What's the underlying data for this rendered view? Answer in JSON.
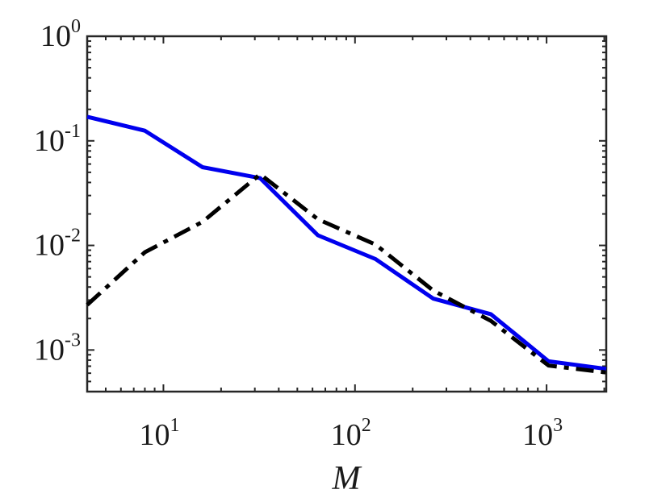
{
  "chart_data": {
    "type": "line",
    "title": "",
    "xlabel": "M",
    "ylabel": "",
    "xscale": "log",
    "yscale": "log",
    "xlim": [
      4,
      2048
    ],
    "ylim": [
      0.0004,
      1
    ],
    "grid": false,
    "legend": "none",
    "x_ticks": [
      {
        "value": 10,
        "base": "10",
        "exp": "1"
      },
      {
        "value": 100,
        "base": "10",
        "exp": "2"
      },
      {
        "value": 1000,
        "base": "10",
        "exp": "3"
      }
    ],
    "y_ticks": [
      {
        "value": 1,
        "base": "10",
        "exp": "0"
      },
      {
        "value": 0.1,
        "base": "10",
        "exp": "-1"
      },
      {
        "value": 0.01,
        "base": "10",
        "exp": "-2"
      },
      {
        "value": 0.001,
        "base": "10",
        "exp": "-3"
      }
    ],
    "series": [
      {
        "color": "#0000ee",
        "style": "solid",
        "x": [
          4,
          8,
          16,
          32,
          64,
          128,
          256,
          512,
          1024,
          2048
        ],
        "y": [
          0.17,
          0.125,
          0.056,
          0.044,
          0.0125,
          0.0074,
          0.0031,
          0.0022,
          0.00078,
          0.00066
        ]
      },
      {
        "color": "#000000",
        "style": "dashdot",
        "x": [
          4,
          8,
          16,
          32,
          64,
          128,
          256,
          512,
          1024,
          2048
        ],
        "y": [
          0.0027,
          0.0086,
          0.0168,
          0.048,
          0.0178,
          0.0102,
          0.0037,
          0.0019,
          0.00071,
          0.00061
        ]
      }
    ]
  }
}
